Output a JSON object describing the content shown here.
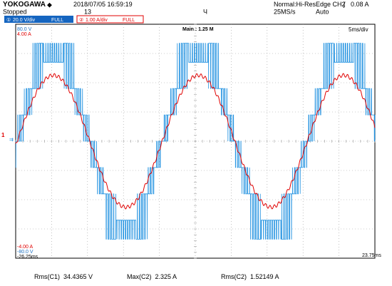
{
  "header": {
    "brand": "YOKOGAWA",
    "datetime": "2018/07/05 16:59:19",
    "status": "Stopped",
    "count": "13",
    "acq_mode": "Normal:Hi-Res",
    "sample_rate": "25MS/s",
    "trigger": "Edge CH2",
    "trigger_level": "0.08 A",
    "trigger_mode": "Auto",
    "ch1_scale": "20.0 V/div",
    "ch1_bw": "FULL",
    "ch2_scale": "1.00 A/div",
    "ch2_bw": "FULL"
  },
  "screen": {
    "main_label": "Main : 1.25 M",
    "timebase": "5ms/div",
    "ch1_top": "80.0 V",
    "ch2_top": "4.00 A",
    "ch2_bottom": "-4.00 A",
    "ch1_bottom": "-80.0 V",
    "time_start": "-26.25ms",
    "time_end": "23.75ms"
  },
  "measurements": [
    {
      "label": "Rms(C1)",
      "value": "34.4365 V"
    },
    {
      "label": "Max(C2)",
      "value": "2.325 A"
    },
    {
      "label": "Rms(C2)",
      "value": "1.52149 A"
    }
  ],
  "colors": {
    "ch1": "#1e90e0",
    "ch2": "#e00000",
    "grid": "#9a9a9a",
    "header_bg": "#1565c0"
  },
  "chart_data": {
    "type": "line",
    "xlabel": "",
    "ylabel": "",
    "xlim": [
      -26.25,
      23.75
    ],
    "series": [
      {
        "channel": "CH1",
        "unit": "V",
        "scale_per_div": 20.0,
        "waveform": "multilevel PWM voltage, approx 49.5 Hz",
        "peak": 67
      },
      {
        "channel": "CH2",
        "unit": "A",
        "scale_per_div": 1.0,
        "waveform": "sinusoidal current, approx 49.5 Hz",
        "peak": 2.325
      }
    ]
  }
}
